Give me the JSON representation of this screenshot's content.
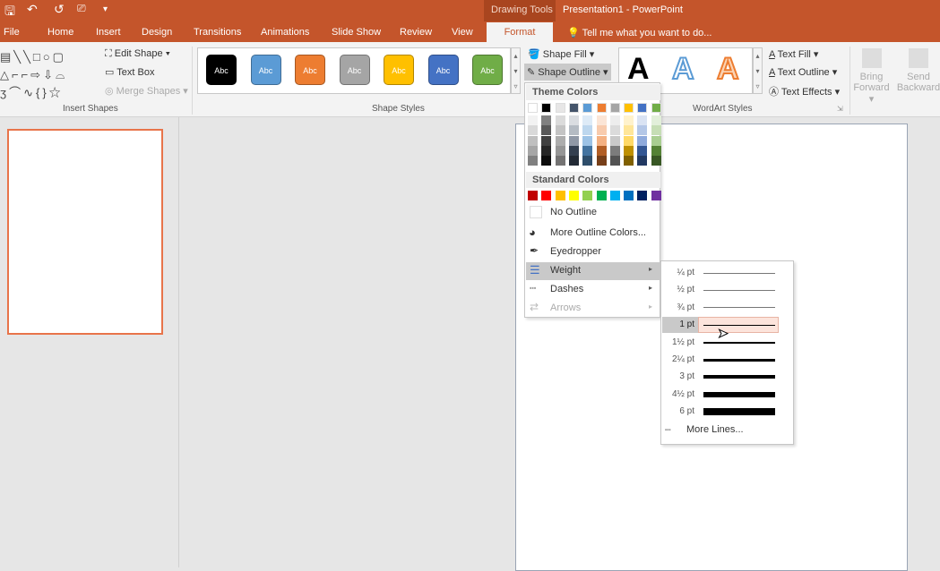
{
  "window": {
    "title": "Presentation1 - PowerPoint",
    "context_tab": "Drawing Tools"
  },
  "quick_access": [
    "save-icon",
    "undo-icon",
    "redo-icon",
    "start-from-beginning-icon",
    "customize-icon"
  ],
  "tabs": [
    "File",
    "Home",
    "Insert",
    "Design",
    "Transitions",
    "Animations",
    "Slide Show",
    "Review",
    "View",
    "Format"
  ],
  "active_tab": "Format",
  "tell_me": "Tell me what you want to do...",
  "ribbon": {
    "insert_shapes": {
      "label": "Insert Shapes",
      "edit_shape": "Edit Shape",
      "text_box": "Text Box",
      "merge_shapes": "Merge Shapes"
    },
    "shape_styles": {
      "label": "Shape Styles",
      "style_text": "Abc",
      "styles": [
        "#000000",
        "#5b9bd5",
        "#ed7d31",
        "#a5a5a5",
        "#ffc000",
        "#4472c4",
        "#70ad47"
      ],
      "shape_fill": "Shape Fill",
      "shape_outline": "Shape Outline"
    },
    "wordart": {
      "label": "WordArt Styles",
      "letter": "A",
      "text_fill": "Text Fill",
      "text_outline": "Text Outline",
      "text_effects": "Text Effects"
    },
    "arrange": {
      "bring_forward": [
        "Bring",
        "Forward"
      ],
      "send_backward": [
        "Send",
        "Backward"
      ]
    }
  },
  "outline_menu": {
    "theme_colors_label": "Theme Colors",
    "theme_colors": [
      "#ffffff",
      "#000000",
      "#e7e6e6",
      "#44546a",
      "#5b9bd5",
      "#ed7d31",
      "#a5a5a5",
      "#ffc000",
      "#4472c4",
      "#70ad47"
    ],
    "standard_colors_label": "Standard Colors",
    "standard_colors": [
      "#c00000",
      "#ff0000",
      "#ffc000",
      "#ffff00",
      "#92d050",
      "#00b050",
      "#00b0f0",
      "#0070c0",
      "#002060",
      "#7030a0"
    ],
    "no_outline": "No Outline",
    "more_colors": "More Outline Colors...",
    "eyedropper": "Eyedropper",
    "weight": "Weight",
    "dashes": "Dashes",
    "arrows": "Arrows"
  },
  "weight_menu": {
    "items": [
      "¼ pt",
      "½ pt",
      "¾ pt",
      "1 pt",
      "1½ pt",
      "2¼ pt",
      "3 pt",
      "4½ pt",
      "6 pt"
    ],
    "selected": "1 pt",
    "more_lines": "More Lines..."
  }
}
